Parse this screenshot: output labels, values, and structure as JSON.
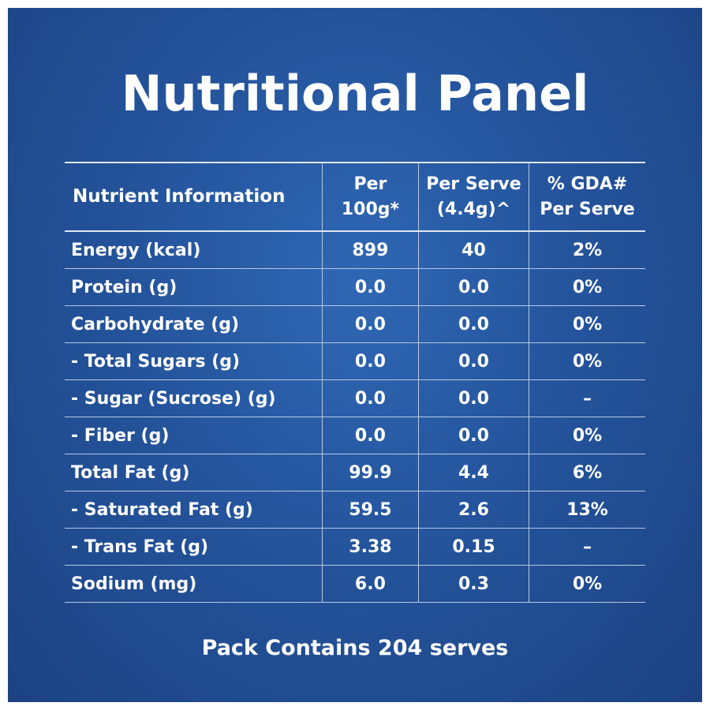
{
  "title": "Nutritional Panel",
  "table": {
    "headers": [
      {
        "line1": "Nutrient Information",
        "line2": ""
      },
      {
        "line1": "Per",
        "line2": "100g*"
      },
      {
        "line1": "Per Serve",
        "line2": "(4.4g)^"
      },
      {
        "line1": "% GDA#",
        "line2": "Per Serve"
      }
    ],
    "rows": [
      {
        "nutrient": "Energy (kcal)",
        "per100g": "899",
        "perServe": "40",
        "gda": "2%"
      },
      {
        "nutrient": "Protein (g)",
        "per100g": "0.0",
        "perServe": "0.0",
        "gda": "0%"
      },
      {
        "nutrient": "Carbohydrate (g)",
        "per100g": "0.0",
        "perServe": "0.0",
        "gda": "0%"
      },
      {
        "nutrient": "- Total Sugars (g)",
        "per100g": "0.0",
        "perServe": "0.0",
        "gda": "0%"
      },
      {
        "nutrient": "- Sugar (Sucrose) (g)",
        "per100g": "0.0",
        "perServe": "0.0",
        "gda": "–"
      },
      {
        "nutrient": "- Fiber (g)",
        "per100g": "0.0",
        "perServe": "0.0",
        "gda": "0%"
      },
      {
        "nutrient": "Total Fat (g)",
        "per100g": "99.9",
        "perServe": "4.4",
        "gda": "6%"
      },
      {
        "nutrient": "- Saturated Fat (g)",
        "per100g": "59.5",
        "perServe": "2.6",
        "gda": "13%"
      },
      {
        "nutrient": "- Trans Fat (g)",
        "per100g": "3.38",
        "perServe": "0.15",
        "gda": "–"
      },
      {
        "nutrient": "Sodium (mg)",
        "per100g": "6.0",
        "perServe": "0.3",
        "gda": "0%"
      }
    ]
  },
  "footer": "Pack Contains 204 serves",
  "colors": {
    "background": "#24549c",
    "text": "#ffffff"
  }
}
